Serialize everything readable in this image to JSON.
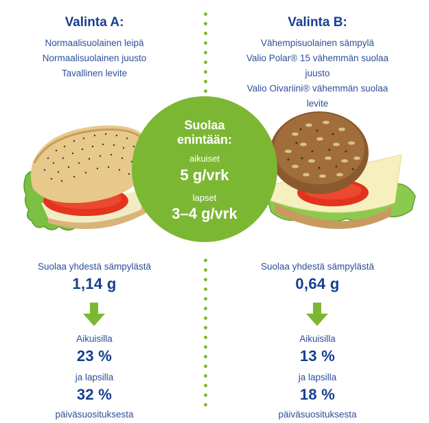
{
  "option_a": {
    "title": "Valinta A:",
    "items": [
      "Normaalisuolainen leipä",
      "Normaalisuolainen juusto",
      "Tavallinen levite"
    ],
    "salt_label": "Suolaa yhdestä sämpylästä",
    "salt_value": "1,14 g",
    "adults_label": "Aikuisilla",
    "adults_value": "23 %",
    "children_label": "ja lapsilla",
    "children_value": "32 %",
    "footer": "päiväsuosituksesta"
  },
  "option_b": {
    "title": "Valinta B:",
    "items": [
      "Vähempisuolainen sämpylä",
      "Valio Polar® 15 vähemmän suolaa juusto",
      "Valio Oivariini® vähemmän suolaa levite"
    ],
    "salt_label": "Suolaa yhdestä sämpylästä",
    "salt_value": "0,64 g",
    "adults_label": "Aikuisilla",
    "adults_value": "13 %",
    "children_label": "ja lapsilla",
    "children_value": "18 %",
    "footer": "päiväsuosituksesta"
  },
  "circle": {
    "title_line1": "Suolaa",
    "title_line2": "enintään:",
    "adults_label": "aikuiset",
    "adults_value": "5 g/vrk",
    "children_label": "lapset",
    "children_value": "3–4 g/vrk"
  },
  "colors": {
    "navy": "#173f8f",
    "green": "#7cb734"
  },
  "icons": {
    "arrow": "arrow-down-icon",
    "sandwich_a": "poppy-seed-baguette-sandwich",
    "sandwich_b": "multigrain-roll-sandwich"
  }
}
